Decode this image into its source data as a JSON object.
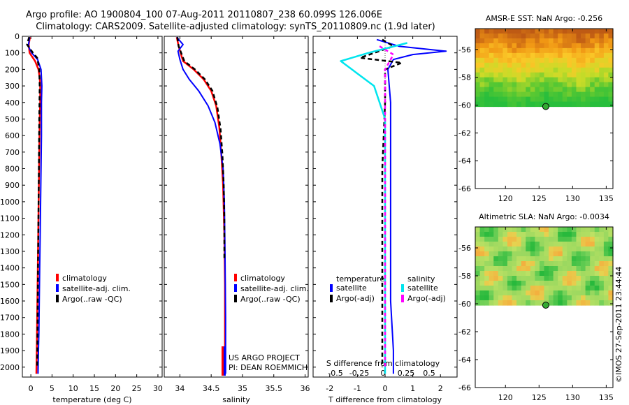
{
  "header": {
    "title_line1": "Argo profile: AO 1900804_100 07-Aug-2011 20110807_238 60.099S 126.006E",
    "title_line2": "Climatology: CARS2009. Satellite-adjusted climatology: synTS_20110809.nc (1.9d later)"
  },
  "credit": "©IMOS 27-Sep-2011 23:44:44",
  "colors": {
    "climatology": "#ff0000",
    "satellite": "#0000ff",
    "argo": "#000000",
    "sal_sat": "#00e5ee",
    "sal_argo": "#ff00ff"
  },
  "depth_ticks": [
    0,
    100,
    200,
    300,
    400,
    500,
    600,
    700,
    800,
    900,
    1000,
    1100,
    1200,
    1300,
    1400,
    1500,
    1600,
    1700,
    1800,
    1900,
    2000
  ],
  "chart_data": [
    {
      "type": "line",
      "xlabel": "temperature (deg C)",
      "xticks": [
        0,
        5,
        10,
        15,
        20,
        25,
        30
      ],
      "xlim": [
        -2,
        31
      ],
      "ylim": [
        2060,
        0
      ],
      "legend": [
        "climatology",
        "satellite-adj. clim.",
        "Argo(..raw -QC)"
      ],
      "series": [
        {
          "name": "climatology",
          "x": [
            -0.2,
            -0.5,
            -0.3,
            1.0,
            1.8,
            2.1,
            2.2,
            2.2,
            2.1,
            2.0,
            1.9,
            1.8,
            1.7,
            1.6,
            1.5,
            1.4,
            1.3
          ],
          "y": [
            5,
            50,
            100,
            150,
            200,
            250,
            300,
            400,
            500,
            700,
            900,
            1100,
            1300,
            1500,
            1700,
            1900,
            2040
          ]
        },
        {
          "name": "satellite-adj. clim.",
          "x": [
            -0.3,
            -0.6,
            0.2,
            1.6,
            2.4,
            2.6,
            2.5,
            2.5,
            2.4,
            2.3,
            2.2,
            2.1,
            2.0,
            1.9,
            1.8,
            1.7
          ],
          "y": [
            5,
            60,
            100,
            140,
            200,
            300,
            400,
            600,
            800,
            1000,
            1200,
            1400,
            1600,
            1800,
            1900,
            2040
          ]
        },
        {
          "name": "Argo(..raw -QC)",
          "x": [
            -0.4,
            -0.9,
            0.5,
            1.5,
            2.0,
            2.1,
            2.0,
            1.9,
            1.8,
            1.7,
            1.6,
            1.5
          ],
          "y": [
            5,
            50,
            100,
            130,
            200,
            300,
            500,
            800,
            1100,
            1400,
            1700,
            2000
          ]
        }
      ]
    },
    {
      "type": "line",
      "xlabel": "salinity",
      "xticks": [
        34,
        34.5,
        35,
        35.5,
        36
      ],
      "xlim": [
        33.75,
        36.05
      ],
      "ylim": [
        2060,
        0
      ],
      "legend": [
        "climatology",
        "satellite-adj. clim.",
        "Argo(..raw -QC)"
      ],
      "annotation": [
        "US ARGO PROJECT",
        "PI: DEAN ROEMMICH"
      ],
      "series": [
        {
          "name": "climatology",
          "x": [
            33.95,
            33.98,
            34.05,
            34.22,
            34.38,
            34.5,
            34.58,
            34.63,
            34.66,
            34.69,
            34.71,
            34.72,
            34.72,
            34.72
          ],
          "y": [
            5,
            60,
            150,
            200,
            260,
            330,
            420,
            550,
            700,
            900,
            1200,
            1500,
            1800,
            2040
          ]
        },
        {
          "name": "satellite-adj. clim.",
          "x": [
            33.95,
            34.05,
            33.97,
            34.0,
            34.05,
            34.15,
            34.3,
            34.45,
            34.56,
            34.64,
            34.69,
            34.71,
            34.72,
            34.73,
            34.73
          ],
          "y": [
            5,
            50,
            90,
            140,
            200,
            260,
            330,
            420,
            520,
            650,
            800,
            1000,
            1300,
            1700,
            2040
          ]
        },
        {
          "name": "Argo(..raw -QC)",
          "x": [
            33.96,
            33.98,
            34.07,
            34.24,
            34.4,
            34.52,
            34.6,
            34.65,
            34.68,
            34.7,
            34.71,
            34.71
          ],
          "y": [
            5,
            60,
            150,
            200,
            260,
            330,
            430,
            560,
            720,
            900,
            1100,
            1350
          ]
        }
      ]
    },
    {
      "type": "line",
      "xlabel": "T difference from climatology",
      "xlabel2": "S difference from climatology",
      "xticks": [
        -2,
        -1,
        0,
        1,
        2
      ],
      "xlim": [
        -2.6,
        2.6
      ],
      "sticks": [
        "-0.5",
        "-0.25",
        "0",
        "0.25",
        "0.5"
      ],
      "ylim": [
        2060,
        0
      ],
      "legend": {
        "temperature": [
          "satellite",
          "Argo(-adj)"
        ],
        "salinity": [
          "satellite",
          "Argo(-adj)"
        ]
      },
      "series": [
        {
          "name": "temperature satellite",
          "x": [
            -0.3,
            0.5,
            2.2,
            1.0,
            0.3,
            0.1,
            0.2,
            0.2,
            0.2,
            0.2,
            0.2,
            0.3,
            0.3
          ],
          "y": [
            20,
            60,
            90,
            110,
            140,
            200,
            400,
            700,
            1000,
            1300,
            1600,
            1900,
            2040
          ]
        },
        {
          "name": "temperature Argo(-adj)",
          "x": [
            -0.1,
            0.3,
            -0.9,
            0.6,
            0.0,
            0.0,
            -0.1,
            -0.1,
            -0.1,
            -0.1
          ],
          "y": [
            20,
            60,
            130,
            160,
            200,
            400,
            800,
            1200,
            1600,
            2000
          ]
        },
        {
          "name": "salinity satellite",
          "x": [
            0.8,
            -0.6,
            -1.6,
            -1.2,
            -0.4,
            0.0,
            0.0,
            0.0,
            0.0,
            0.0
          ],
          "y": [
            40,
            100,
            150,
            200,
            300,
            500,
            800,
            1200,
            1600,
            2040
          ]
        },
        {
          "name": "salinity Argo(-adj)",
          "x": [
            -0.2,
            0.3,
            0.0,
            0.0,
            0.0,
            0.0,
            0.0,
            0.0
          ],
          "y": [
            60,
            110,
            200,
            300,
            600,
            1000,
            1500,
            2000
          ]
        }
      ]
    }
  ],
  "map_panels": [
    {
      "title": "AMSR-E SST: NaN Argo: -0.256",
      "yticks": [
        -56,
        -58,
        -60,
        -62,
        -64,
        -66
      ],
      "xticks": [
        120,
        125,
        130,
        135
      ],
      "xlim": [
        115.5,
        136
      ],
      "ylim": [
        -66,
        -54.5
      ],
      "data_bottom": -60.1,
      "marker": {
        "lon": 126.0,
        "lat": -60.1
      }
    },
    {
      "title": "Altimetric SLA: NaN Argo: -0.0034",
      "yticks": [
        -56,
        -58,
        -60,
        -62,
        -64,
        -66
      ],
      "xticks": [
        120,
        125,
        130,
        135
      ],
      "xlim": [
        115.5,
        136
      ],
      "ylim": [
        -66,
        -54.5
      ],
      "data_bottom": -60.1,
      "marker": {
        "lon": 126.0,
        "lat": -60.1
      }
    }
  ]
}
